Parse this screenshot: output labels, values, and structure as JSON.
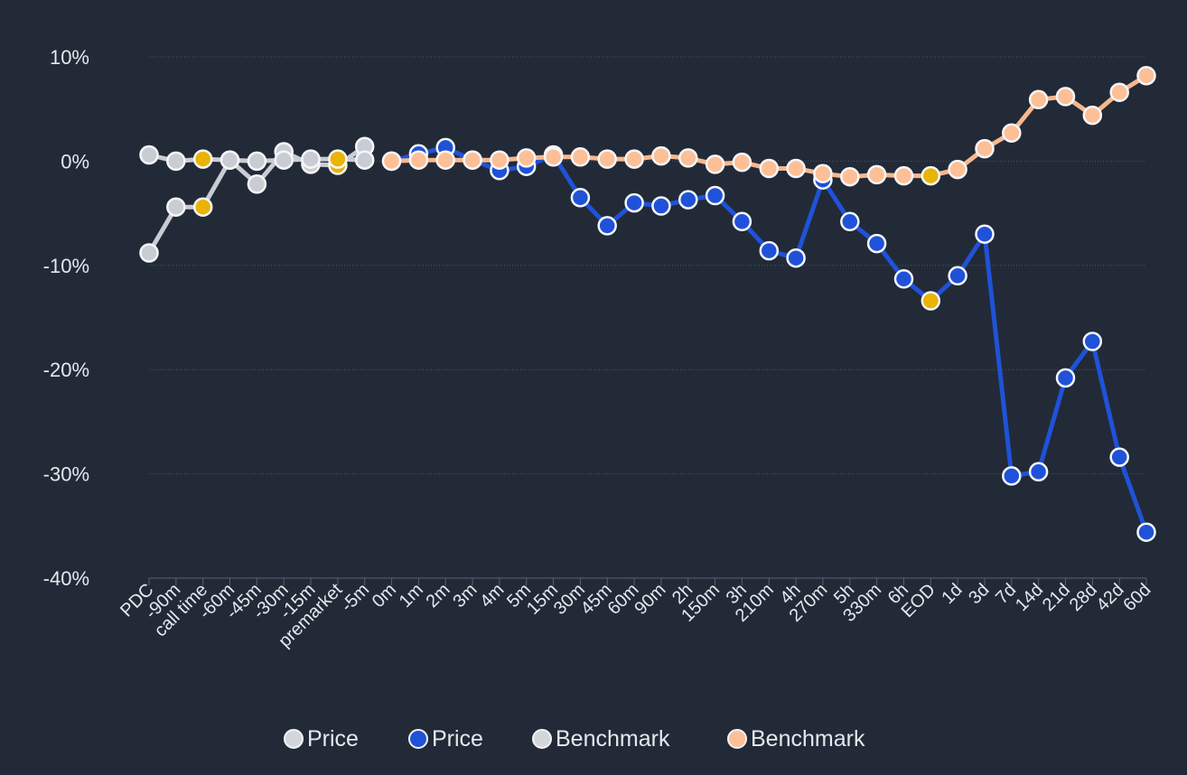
{
  "chart_data": {
    "type": "line",
    "categories": [
      "PDC",
      "-90m",
      "call time",
      "-60m",
      "-45m",
      "-30m",
      "-15m",
      "premarket",
      "-5m",
      "0m",
      "1m",
      "2m",
      "3m",
      "4m",
      "5m",
      "15m",
      "30m",
      "45m",
      "60m",
      "90m",
      "2h",
      "150m",
      "3h",
      "210m",
      "4h",
      "270m",
      "5h",
      "330m",
      "6h",
      "EOD",
      "1d",
      "3d",
      "7d",
      "14d",
      "21d",
      "28d",
      "42d",
      "60d"
    ],
    "y_ticks": [
      "10%",
      "0%",
      "-10%",
      "-20%",
      "-30%",
      "-40%"
    ],
    "y_tick_values": [
      10,
      0,
      -10,
      -20,
      -30,
      -40
    ],
    "ylim": [
      -40,
      10
    ],
    "series": [
      {
        "name": "Price",
        "color": "#c9cdd3",
        "line_color": "#c9cdd3",
        "values": [
          -8.8,
          -4.4,
          -4.4,
          0.1,
          -2.2,
          0.9,
          -0.3,
          -0.4,
          1.4,
          null,
          null,
          null,
          null,
          null,
          null,
          null,
          null,
          null,
          null,
          null,
          null,
          null,
          null,
          null,
          null,
          null,
          null,
          null,
          null,
          null,
          null,
          null,
          null,
          null,
          null,
          null,
          null,
          null
        ]
      },
      {
        "name": "Price",
        "color": "#1f52d8",
        "line_color": "#1f52d8",
        "values": [
          null,
          null,
          null,
          null,
          null,
          null,
          null,
          null,
          null,
          0.0,
          0.7,
          1.3,
          0.1,
          -0.9,
          -0.5,
          0.6,
          -3.5,
          -6.2,
          -4.0,
          -4.3,
          -3.7,
          -3.3,
          -5.8,
          -8.6,
          -9.3,
          -1.8,
          -5.8,
          -7.9,
          -11.3,
          -13.4,
          -11.0,
          -7.0,
          -30.2,
          -29.8,
          -20.8,
          -17.3,
          -28.4,
          -35.6
        ]
      },
      {
        "name": "Benchmark",
        "color": "#c9cdd3",
        "line_color": "#c9cdd3",
        "values": [
          0.6,
          0.0,
          0.2,
          0.1,
          0.0,
          0.1,
          0.2,
          0.2,
          0.1,
          null,
          null,
          null,
          null,
          null,
          null,
          null,
          null,
          null,
          null,
          null,
          null,
          null,
          null,
          null,
          null,
          null,
          null,
          null,
          null,
          null,
          null,
          null,
          null,
          null,
          null,
          null,
          null,
          null
        ]
      },
      {
        "name": "Benchmark",
        "color": "#fdbf96",
        "line_color": "#f8b88e",
        "values": [
          null,
          null,
          null,
          null,
          null,
          null,
          null,
          null,
          null,
          0.0,
          0.1,
          0.1,
          0.1,
          0.1,
          0.3,
          0.4,
          0.4,
          0.2,
          0.2,
          0.5,
          0.3,
          -0.3,
          -0.1,
          -0.7,
          -0.7,
          -1.2,
          -1.5,
          -1.3,
          -1.4,
          -1.4,
          -0.8,
          1.2,
          2.7,
          5.9,
          6.2,
          4.4,
          6.6,
          8.2
        ]
      }
    ],
    "highlight_points": [
      {
        "series": 0,
        "index": 2,
        "color": "#e9b404"
      },
      {
        "series": 0,
        "index": 7,
        "color": "#e9b404"
      },
      {
        "series": 2,
        "index": 2,
        "color": "#e9b404"
      },
      {
        "series": 2,
        "index": 7,
        "color": "#e9b404"
      },
      {
        "series": 1,
        "index": 9,
        "color": "#e0282c"
      },
      {
        "series": 1,
        "index": 29,
        "color": "#e9b404"
      },
      {
        "series": 3,
        "index": 29,
        "color": "#e9b404"
      }
    ],
    "legend": [
      {
        "label": "Price",
        "color": "#d3d6db"
      },
      {
        "label": "Price",
        "color": "#1f52d8"
      },
      {
        "label": "Benchmark",
        "color": "#d3d6db"
      },
      {
        "label": "Benchmark",
        "color": "#fdbf96"
      }
    ],
    "legend_position": "bottom"
  }
}
